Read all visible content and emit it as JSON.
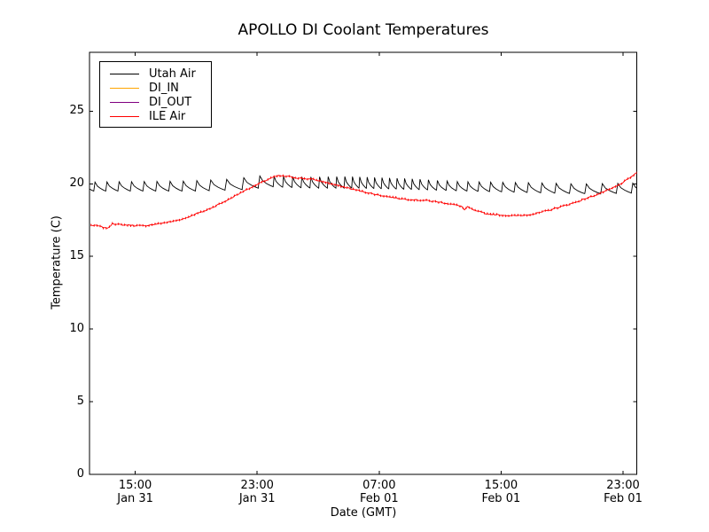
{
  "figure": {
    "title": "APOLLO DI Coolant Temperatures",
    "background": "#ffffff"
  },
  "axes": {
    "xlabel": "Date (GMT)",
    "ylabel": "Temperature (C)",
    "frame_color": "#000000",
    "tick_direction": "in"
  },
  "legend": {
    "position": "upper left",
    "items": [
      {
        "label": "Utah Air",
        "color": "#000000"
      },
      {
        "label": "DI_IN",
        "color": "#ffa500"
      },
      {
        "label": "DI_OUT",
        "color": "#800080"
      },
      {
        "label": "ILE Air",
        "color": "#ff0000"
      }
    ]
  },
  "chart_data": {
    "type": "line",
    "title": "APOLLO DI Coolant Temperatures",
    "xlabel": "Date (GMT)",
    "ylabel": "Temperature (C)",
    "grid": false,
    "legend_position": "upper left",
    "x_unit": "hours after Jan 31 12:00 GMT",
    "xlim": [
      0,
      35.9
    ],
    "ylim": [
      0,
      29.05
    ],
    "y_ticks": [
      0,
      5,
      10,
      15,
      20,
      25
    ],
    "x_ticks": [
      {
        "hour": 3,
        "time": "15:00",
        "date": "Jan 31"
      },
      {
        "hour": 11,
        "time": "23:00",
        "date": "Jan 31"
      },
      {
        "hour": 19,
        "time": "07:00",
        "date": "Feb 01"
      },
      {
        "hour": 27,
        "time": "15:00",
        "date": "Feb 01"
      },
      {
        "hour": 35,
        "time": "23:00",
        "date": "Feb 01"
      }
    ],
    "series": [
      {
        "name": "Utah Air",
        "color": "#000000",
        "shape": "sawtooth",
        "description": "sawtooth cycling ~19.4-20.4 C: sharp rise then slow concave decay each cycle",
        "sawtooth": {
          "trough_keypoints": [
            [
              0,
              19.5
            ],
            [
              6,
              19.5
            ],
            [
              9,
              19.6
            ],
            [
              11,
              19.8
            ],
            [
              12.5,
              19.75
            ],
            [
              14,
              19.7
            ],
            [
              17,
              19.7
            ],
            [
              21,
              19.6
            ],
            [
              24,
              19.5
            ],
            [
              28,
              19.4
            ],
            [
              32,
              19.3
            ],
            [
              35.9,
              19.4
            ]
          ],
          "amplitude_keypoints": [
            [
              0,
              0.62
            ],
            [
              10,
              0.72
            ],
            [
              12,
              0.75
            ],
            [
              17,
              0.8
            ],
            [
              21,
              0.75
            ],
            [
              24,
              0.65
            ],
            [
              30,
              0.7
            ],
            [
              35.9,
              0.65
            ]
          ],
          "period_hours_keypoints": [
            [
              0,
              0.78
            ],
            [
              7,
              0.9
            ],
            [
              8.5,
              1.15
            ],
            [
              11,
              1.0
            ],
            [
              12,
              0.62
            ],
            [
              16,
              0.55
            ],
            [
              17,
              0.48
            ],
            [
              21,
              0.5
            ],
            [
              23,
              0.65
            ],
            [
              26,
              0.78
            ],
            [
              29,
              0.9
            ],
            [
              32.5,
              1.05
            ],
            [
              35.9,
              0.95
            ]
          ],
          "rise_fraction": 0.1
        }
      },
      {
        "name": "DI_IN",
        "color": "#ffa500",
        "points": [],
        "description": "no visible data in plotted range"
      },
      {
        "name": "DI_OUT",
        "color": "#800080",
        "points": [],
        "description": "no visible data in plotted range"
      },
      {
        "name": "ILE Air",
        "color": "#ff0000",
        "noise": 0.045,
        "marker": "tick",
        "points": [
          [
            0.1,
            17.15
          ],
          [
            0.6,
            17.1
          ],
          [
            1.0,
            16.95
          ],
          [
            1.3,
            17.0
          ],
          [
            1.5,
            17.3
          ],
          [
            1.8,
            17.2
          ],
          [
            2.6,
            17.15
          ],
          [
            3.6,
            17.1
          ],
          [
            4.5,
            17.25
          ],
          [
            5.4,
            17.4
          ],
          [
            6.2,
            17.6
          ],
          [
            6.9,
            17.9
          ],
          [
            7.6,
            18.15
          ],
          [
            8.3,
            18.5
          ],
          [
            9.0,
            18.85
          ],
          [
            9.6,
            19.2
          ],
          [
            10.2,
            19.55
          ],
          [
            10.8,
            19.85
          ],
          [
            11.4,
            20.15
          ],
          [
            11.9,
            20.4
          ],
          [
            12.4,
            20.55
          ],
          [
            13.0,
            20.5
          ],
          [
            13.7,
            20.4
          ],
          [
            14.7,
            20.3
          ],
          [
            15.5,
            20.1
          ],
          [
            16.2,
            19.9
          ],
          [
            17.0,
            19.7
          ],
          [
            17.8,
            19.5
          ],
          [
            18.6,
            19.3
          ],
          [
            19.4,
            19.15
          ],
          [
            20.3,
            19.0
          ],
          [
            21.2,
            18.9
          ],
          [
            22.1,
            18.85
          ],
          [
            23.2,
            18.7
          ],
          [
            24.0,
            18.55
          ],
          [
            24.4,
            18.45
          ],
          [
            24.6,
            18.2
          ],
          [
            24.8,
            18.4
          ],
          [
            25.3,
            18.15
          ],
          [
            26.0,
            17.95
          ],
          [
            26.9,
            17.85
          ],
          [
            27.8,
            17.8
          ],
          [
            28.7,
            17.85
          ],
          [
            29.5,
            18.0
          ],
          [
            30.2,
            18.2
          ],
          [
            31.0,
            18.45
          ],
          [
            31.8,
            18.7
          ],
          [
            32.6,
            19.0
          ],
          [
            33.4,
            19.3
          ],
          [
            34.1,
            19.6
          ],
          [
            34.7,
            19.9
          ],
          [
            35.3,
            20.3
          ],
          [
            35.9,
            20.75
          ]
        ]
      }
    ]
  }
}
